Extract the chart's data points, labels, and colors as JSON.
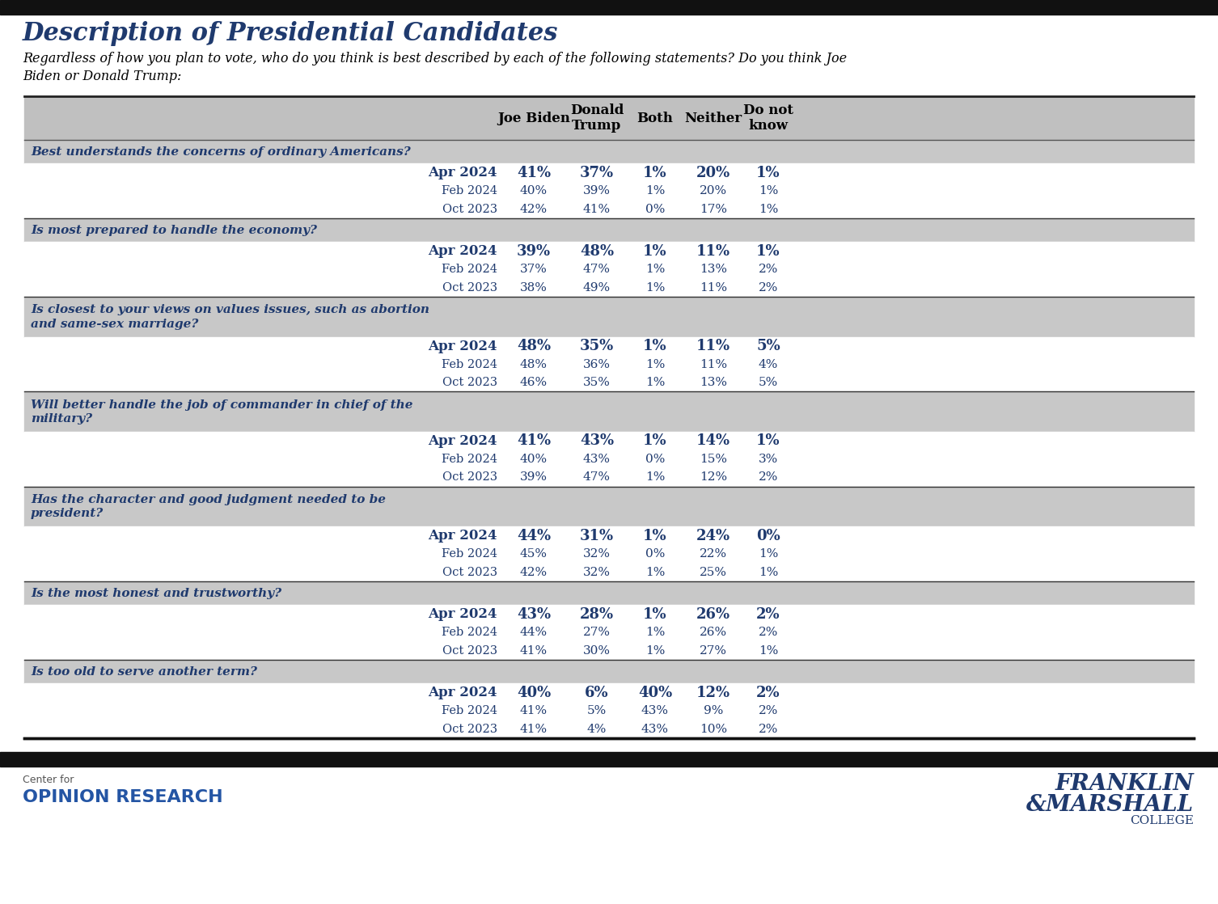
{
  "title": "Description of Presidential Candidates",
  "subtitle": "Regardless of how you plan to vote, who do you think is best described by each of the following statements? Do you think Joe\nBiden or Donald Trump:",
  "title_color": "#1F3A6E",
  "header_bg": "#C0C0C0",
  "question_bg": "#C8C8C8",
  "sections": [
    {
      "question": "Best understands the concerns of ordinary Americans?",
      "two_line": false,
      "rows": [
        {
          "label": "Apr 2024",
          "bold": true,
          "values": [
            "41%",
            "37%",
            "1%",
            "20%",
            "1%"
          ]
        },
        {
          "label": "Feb 2024",
          "bold": false,
          "values": [
            "40%",
            "39%",
            "1%",
            "20%",
            "1%"
          ]
        },
        {
          "label": "Oct 2023",
          "bold": false,
          "values": [
            "42%",
            "41%",
            "0%",
            "17%",
            "1%"
          ]
        }
      ]
    },
    {
      "question": "Is most prepared to handle the economy?",
      "two_line": false,
      "rows": [
        {
          "label": "Apr 2024",
          "bold": true,
          "values": [
            "39%",
            "48%",
            "1%",
            "11%",
            "1%"
          ]
        },
        {
          "label": "Feb 2024",
          "bold": false,
          "values": [
            "37%",
            "47%",
            "1%",
            "13%",
            "2%"
          ]
        },
        {
          "label": "Oct 2023",
          "bold": false,
          "values": [
            "38%",
            "49%",
            "1%",
            "11%",
            "2%"
          ]
        }
      ]
    },
    {
      "question": "Is closest to your views on values issues, such as abortion\nand same-sex marriage?",
      "two_line": true,
      "rows": [
        {
          "label": "Apr 2024",
          "bold": true,
          "values": [
            "48%",
            "35%",
            "1%",
            "11%",
            "5%"
          ]
        },
        {
          "label": "Feb 2024",
          "bold": false,
          "values": [
            "48%",
            "36%",
            "1%",
            "11%",
            "4%"
          ]
        },
        {
          "label": "Oct 2023",
          "bold": false,
          "values": [
            "46%",
            "35%",
            "1%",
            "13%",
            "5%"
          ]
        }
      ]
    },
    {
      "question": "Will better handle the job of commander in chief of the\nmilitary?",
      "two_line": true,
      "rows": [
        {
          "label": "Apr 2024",
          "bold": true,
          "values": [
            "41%",
            "43%",
            "1%",
            "14%",
            "1%"
          ]
        },
        {
          "label": "Feb 2024",
          "bold": false,
          "values": [
            "40%",
            "43%",
            "0%",
            "15%",
            "3%"
          ]
        },
        {
          "label": "Oct 2023",
          "bold": false,
          "values": [
            "39%",
            "47%",
            "1%",
            "12%",
            "2%"
          ]
        }
      ]
    },
    {
      "question": "Has the character and good judgment needed to be\npresident?",
      "two_line": true,
      "rows": [
        {
          "label": "Apr 2024",
          "bold": true,
          "values": [
            "44%",
            "31%",
            "1%",
            "24%",
            "0%"
          ]
        },
        {
          "label": "Feb 2024",
          "bold": false,
          "values": [
            "45%",
            "32%",
            "0%",
            "22%",
            "1%"
          ]
        },
        {
          "label": "Oct 2023",
          "bold": false,
          "values": [
            "42%",
            "32%",
            "1%",
            "25%",
            "1%"
          ]
        }
      ]
    },
    {
      "question": "Is the most honest and trustworthy?",
      "two_line": false,
      "rows": [
        {
          "label": "Apr 2024",
          "bold": true,
          "values": [
            "43%",
            "28%",
            "1%",
            "26%",
            "2%"
          ]
        },
        {
          "label": "Feb 2024",
          "bold": false,
          "values": [
            "44%",
            "27%",
            "1%",
            "26%",
            "2%"
          ]
        },
        {
          "label": "Oct 2023",
          "bold": false,
          "values": [
            "41%",
            "30%",
            "1%",
            "27%",
            "1%"
          ]
        }
      ]
    },
    {
      "question": "Is too old to serve another term?",
      "two_line": false,
      "rows": [
        {
          "label": "Apr 2024",
          "bold": true,
          "values": [
            "40%",
            "6%",
            "40%",
            "12%",
            "2%"
          ]
        },
        {
          "label": "Feb 2024",
          "bold": false,
          "values": [
            "41%",
            "5%",
            "43%",
            "9%",
            "2%"
          ]
        },
        {
          "label": "Oct 2023",
          "bold": false,
          "values": [
            "41%",
            "4%",
            "43%",
            "10%",
            "2%"
          ]
        }
      ]
    }
  ],
  "hdr_labels": [
    "Joe Biden",
    "Donald\nTrump",
    "Both",
    "Neither",
    "Do not\nknow"
  ],
  "top_bar_color": "#111111",
  "footer_bar_color": "#111111",
  "data_color": "#1F3A6E",
  "label_color": "#1F3A6E",
  "question_color": "#1F3A6E"
}
